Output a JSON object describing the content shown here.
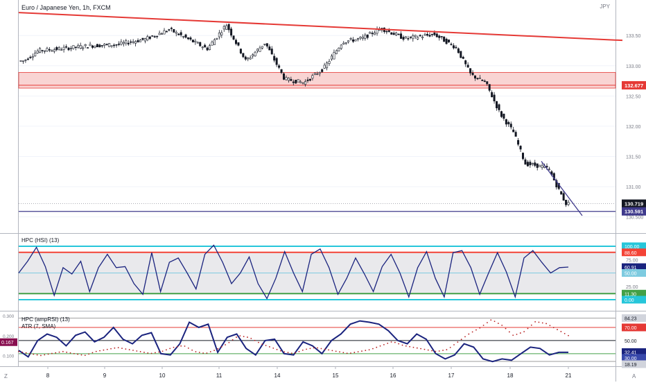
{
  "chart_data": [
    {
      "type": "candlestick",
      "title": "Euro / Japanese Yen, 1h, FXCM",
      "currency": "JPY",
      "ylim": [
        130.45,
        133.95
      ],
      "y_ticks": [
        "133.50",
        "133.00",
        "132.50",
        "132.00",
        "131.50",
        "131.00",
        "130.500"
      ],
      "price_labels": [
        {
          "value": 132.677,
          "text": "132.677",
          "color": "#e53935"
        },
        {
          "value": 130.719,
          "text": "130.719",
          "color": "#131722"
        },
        {
          "value": 130.591,
          "text": "130.591",
          "color": "#3f3a8c"
        }
      ],
      "x_ticks": [
        "8",
        "9",
        "10",
        "11",
        "14",
        "15",
        "16",
        "17",
        "18",
        "21"
      ],
      "resistance_zone": [
        132.63,
        132.89
      ],
      "support_line": 130.591,
      "descending_trendline": {
        "from": [
          "7",
          133.88
        ],
        "to": [
          "21",
          133.42
        ]
      },
      "short_trendline": {
        "from": [
          "18",
          131.42
        ],
        "to": [
          "21",
          130.52
        ]
      },
      "price_path": [
        {
          "x": "7",
          "y": 133.08
        },
        {
          "x": "7",
          "y": 133.25
        },
        {
          "x": "8",
          "y": 133.28
        },
        {
          "x": "8",
          "y": 133.33
        },
        {
          "x": "9",
          "y": 133.35
        },
        {
          "x": "9",
          "y": 133.44
        },
        {
          "x": "10",
          "y": 133.6
        },
        {
          "x": "10",
          "y": 133.44
        },
        {
          "x": "10",
          "y": 133.28
        },
        {
          "x": "11",
          "y": 133.68
        },
        {
          "x": "11",
          "y": 133.08
        },
        {
          "x": "11",
          "y": 133.38
        },
        {
          "x": "14",
          "y": 132.78
        },
        {
          "x": "14",
          "y": 132.72
        },
        {
          "x": "14",
          "y": 132.95
        },
        {
          "x": "15",
          "y": 133.4
        },
        {
          "x": "15",
          "y": 133.45
        },
        {
          "x": "15",
          "y": 133.62
        },
        {
          "x": "16",
          "y": 133.45
        },
        {
          "x": "16",
          "y": 133.52
        },
        {
          "x": "17",
          "y": 133.3
        },
        {
          "x": "17",
          "y": 132.85
        },
        {
          "x": "17",
          "y": 132.72
        },
        {
          "x": "17",
          "y": 132.2
        },
        {
          "x": "18",
          "y": 131.9
        },
        {
          "x": "18",
          "y": 131.38
        },
        {
          "x": "18",
          "y": 131.35
        },
        {
          "x": "18",
          "y": 131.3
        },
        {
          "x": "18",
          "y": 130.9
        },
        {
          "x": "21",
          "y": 130.72
        }
      ]
    },
    {
      "type": "line",
      "title": "HPC (HSI) (13)",
      "ylim": [
        0,
        100
      ],
      "y_ticks": [
        "100.00",
        "75.00",
        "50.00",
        "25.00",
        "0.00"
      ],
      "levels": [
        {
          "value": 100,
          "color": "#26c6da"
        },
        {
          "value": 88.6,
          "color": "#f44336"
        },
        {
          "value": 50,
          "color": "#7ecbe0"
        },
        {
          "value": 11.3,
          "color": "#43a047"
        },
        {
          "value": 0,
          "color": "#26c6da"
        }
      ],
      "value_labels": [
        {
          "text": "100.00",
          "color": "#26c6da"
        },
        {
          "text": "88.60",
          "color": "#f44336"
        },
        {
          "text": "60.91",
          "color": "#1a237e"
        },
        {
          "text": "50.00",
          "color": "#7ecbe0"
        },
        {
          "text": "11.30",
          "color": "#43a047"
        },
        {
          "text": "0.00",
          "color": "#26c6da"
        }
      ],
      "series": [
        {
          "color": "#1a237e",
          "values": [
            50,
            72,
            98,
            62,
            8,
            60,
            48,
            72,
            15,
            60,
            85,
            60,
            62,
            30,
            10,
            88,
            15,
            70,
            78,
            50,
            20,
            85,
            102,
            70,
            30,
            50,
            80,
            30,
            2,
            40,
            90,
            50,
            15,
            85,
            95,
            60,
            10,
            40,
            78,
            48,
            15,
            62,
            85,
            50,
            5,
            60,
            90,
            40,
            5,
            88,
            92,
            60,
            10,
            50,
            88,
            52,
            5,
            78,
            92,
            70,
            50,
            60,
            61
          ]
        }
      ]
    },
    {
      "type": "line",
      "titles": [
        "HPC (ampRSI) (13)",
        "ATR (7, SMA)"
      ],
      "ylim_left": [
        0.06,
        0.3
      ],
      "left_ticks": [
        "0.300",
        "0.200",
        "0.100"
      ],
      "left_labels": [
        {
          "text": "0.167",
          "color": "#880e4f"
        }
      ],
      "ylim_right": [
        15,
        88
      ],
      "right_ticks": [
        "84.23",
        "70.00",
        "50.00",
        "32.41",
        "30.00",
        "18.19"
      ],
      "levels": [
        {
          "value": 84.23,
          "color": "#9e9e9e"
        },
        {
          "value": 70,
          "color": "#e53935"
        },
        {
          "value": 50,
          "color": "#131722"
        },
        {
          "value": 30,
          "color": "#43a047"
        },
        {
          "value": 18.19,
          "color": "#9e9e9e"
        }
      ],
      "value_labels": [
        {
          "text": "84.23",
          "color": "#787b86"
        },
        {
          "text": "70.00",
          "color": "#e53935"
        },
        {
          "text": "50.00",
          "color": "#131722"
        },
        {
          "text": "32.41",
          "color": "#1a237e"
        },
        {
          "text": "30.00",
          "color": "#3949ab"
        },
        {
          "text": "18.19",
          "color": "#787b86"
        }
      ],
      "series": [
        {
          "color": "#1a237e",
          "axis": "right",
          "values": [
            35,
            25,
            50,
            60,
            55,
            42,
            58,
            63,
            48,
            55,
            70,
            52,
            45,
            58,
            62,
            30,
            28,
            45,
            78,
            70,
            75,
            32,
            55,
            60,
            38,
            28,
            50,
            52,
            30,
            28,
            48,
            42,
            30,
            50,
            60,
            75,
            80,
            78,
            75,
            65,
            50,
            45,
            60,
            52,
            30,
            22,
            28,
            45,
            40,
            22,
            18,
            22,
            20,
            30,
            40,
            38,
            28,
            32,
            32
          ]
        },
        {
          "color": "#b71c1c",
          "axis": "left",
          "values": [
            0.12,
            0.11,
            0.1,
            0.11,
            0.12,
            0.11,
            0.1,
            0.12,
            0.13,
            0.14,
            0.13,
            0.12,
            0.11,
            0.12,
            0.14,
            0.15,
            0.12,
            0.11,
            0.13,
            0.16,
            0.2,
            0.19,
            0.16,
            0.14,
            0.12,
            0.11,
            0.13,
            0.14,
            0.13,
            0.12,
            0.11,
            0.12,
            0.13,
            0.15,
            0.17,
            0.15,
            0.14,
            0.13,
            0.12,
            0.13,
            0.17,
            0.21,
            0.24,
            0.28,
            0.25,
            0.2,
            0.22,
            0.27,
            0.26,
            0.23,
            0.2
          ]
        }
      ]
    }
  ],
  "time_axis": [
    "8",
    "9",
    "10",
    "11",
    "14",
    "15",
    "16",
    "17",
    "18",
    "21"
  ],
  "corner_left": "Z",
  "corner_right": "A"
}
